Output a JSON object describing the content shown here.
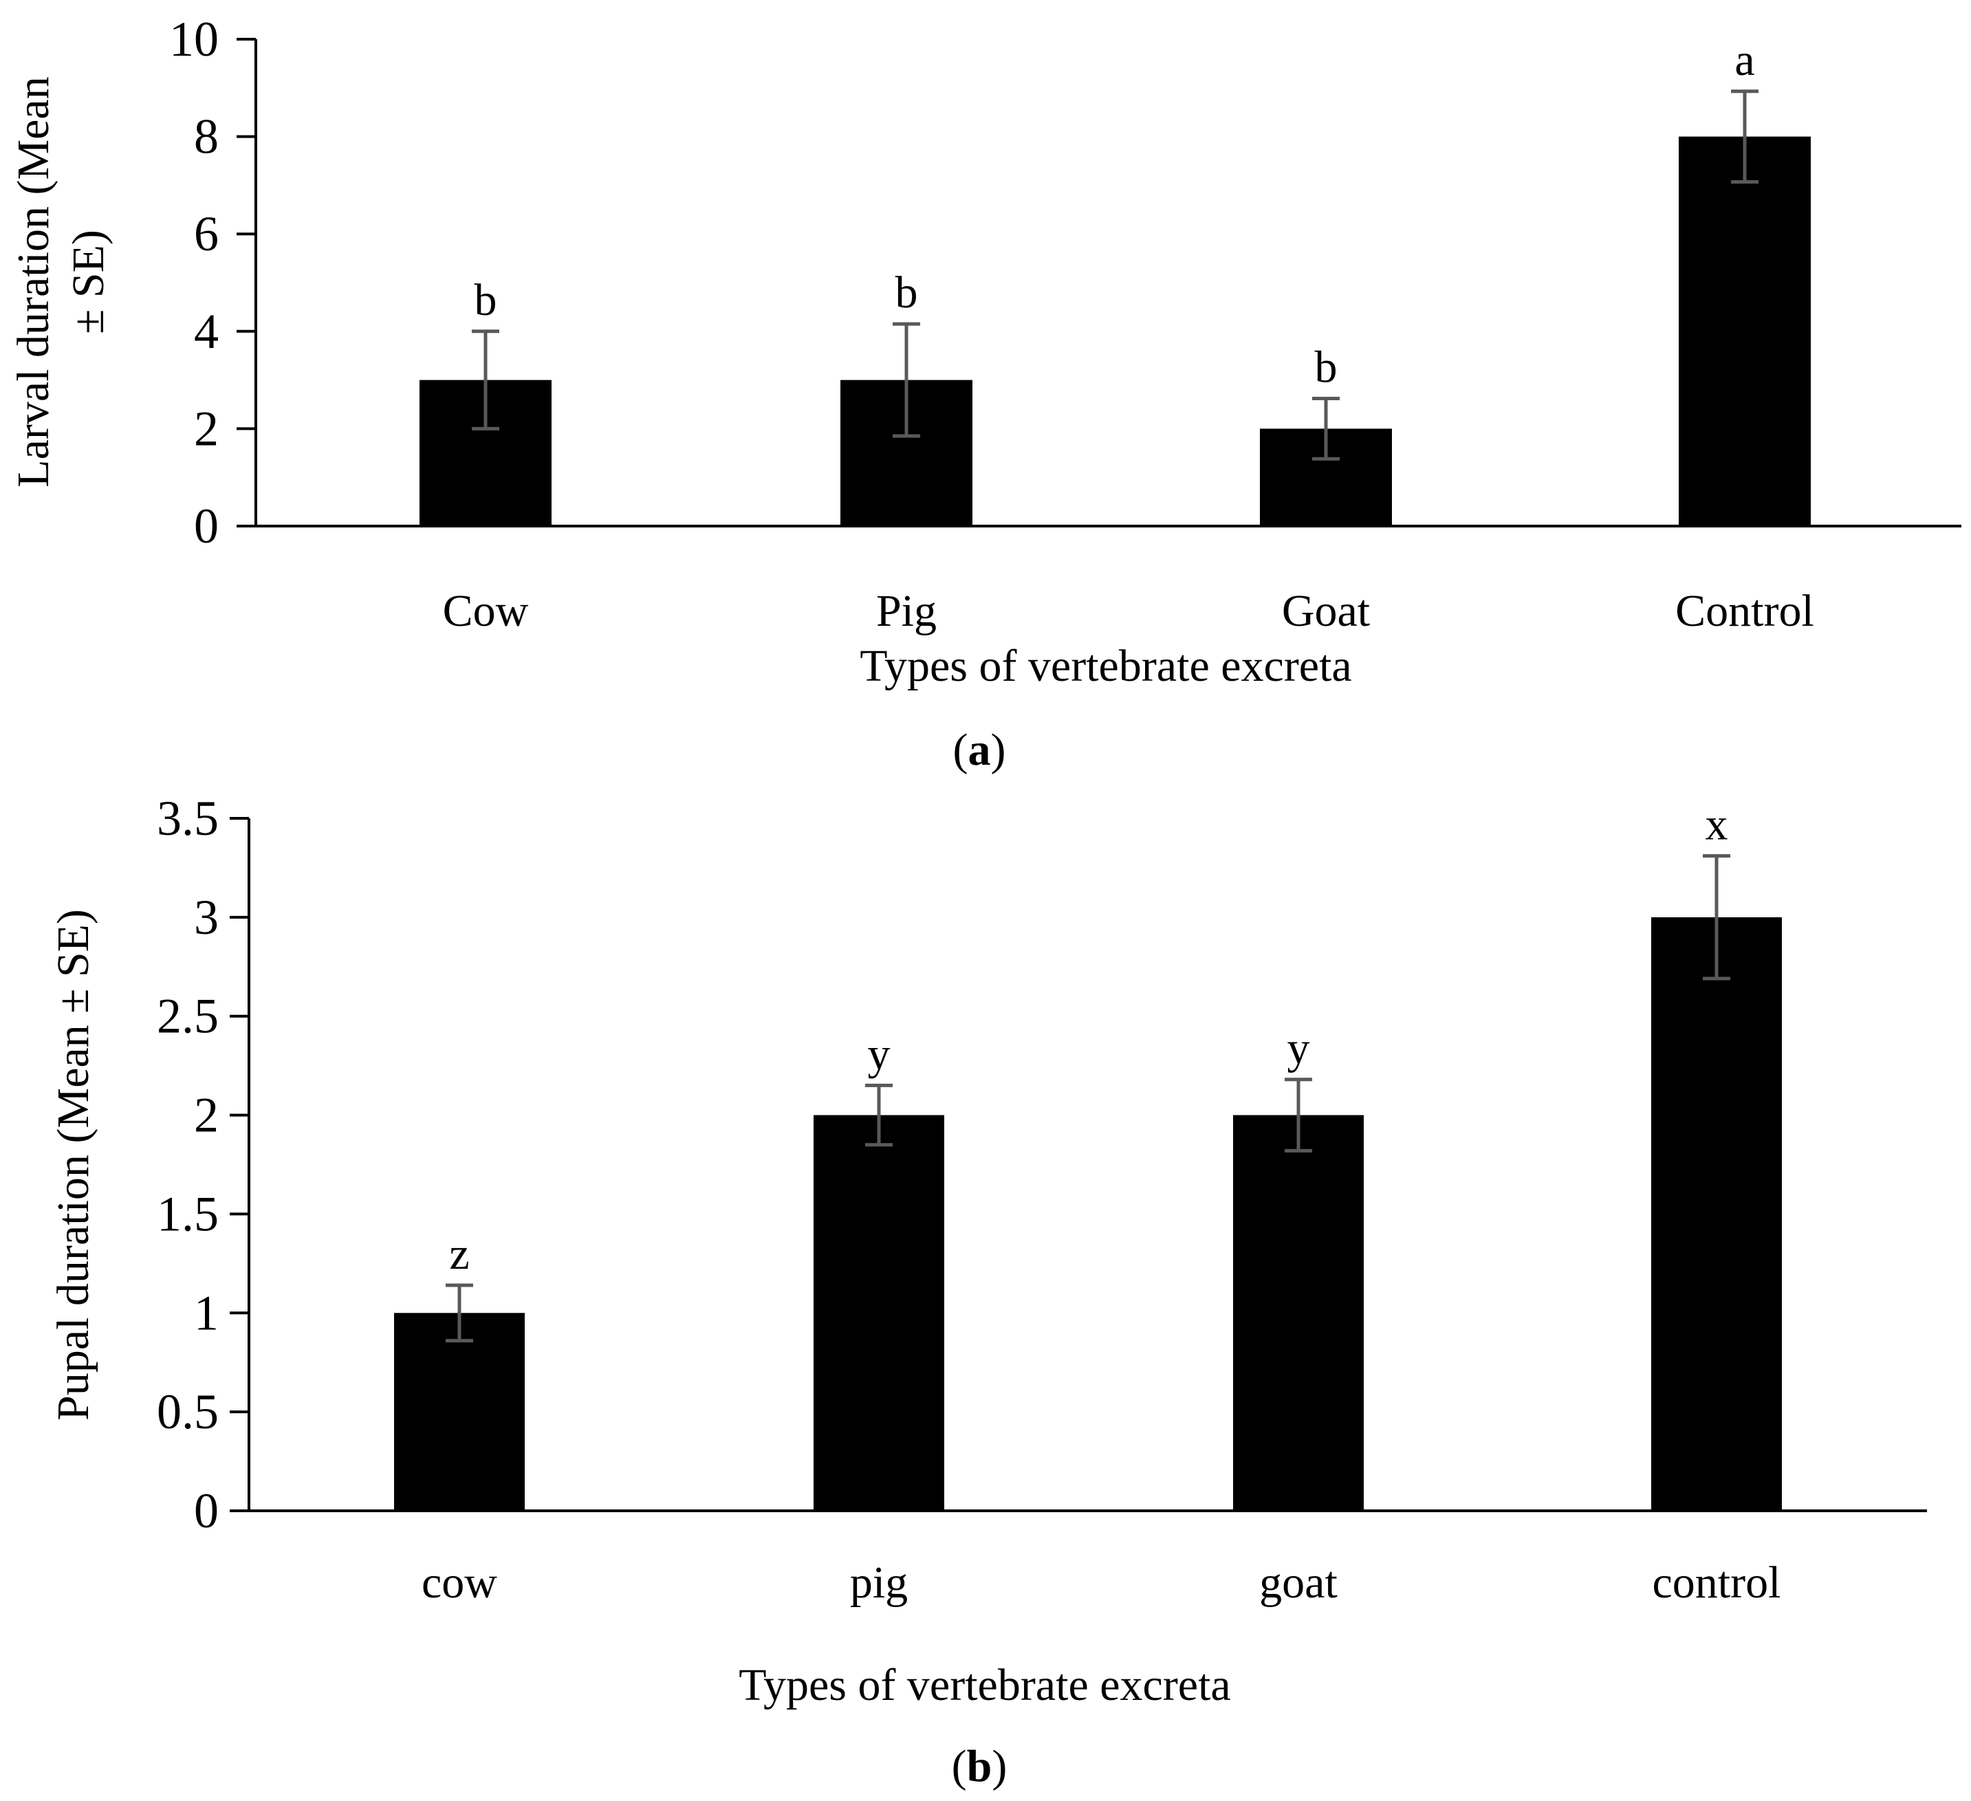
{
  "chart_data": [
    {
      "type": "bar",
      "panel_label": "a",
      "title": "",
      "xlabel": "Types of vertebrate excreta",
      "ylabel_lines": [
        "Larval duration (Mean",
        "± SE)"
      ],
      "categories": [
        "Cow",
        "Pig",
        "Goat",
        "Control"
      ],
      "values": [
        3,
        3,
        2,
        8
      ],
      "errors": [
        1.0,
        1.15,
        0.62,
        0.93
      ],
      "significance": [
        "b",
        "b",
        "b",
        "a"
      ],
      "ylim": [
        0,
        10
      ],
      "yticks": [
        0,
        2,
        4,
        6,
        8,
        10
      ],
      "ytick_labels": [
        "0",
        "2",
        "4",
        "6",
        "8",
        "10"
      ],
      "grid": false,
      "bar_color": "#000000",
      "error_bar_color": "#595959"
    },
    {
      "type": "bar",
      "panel_label": "b",
      "title": "",
      "xlabel": "Types of vertebrate excreta",
      "ylabel_lines": [
        "Pupal duration (Mean ± SE)"
      ],
      "categories": [
        "cow",
        "pig",
        "goat",
        "control"
      ],
      "values": [
        1,
        2,
        2,
        3
      ],
      "errors": [
        0.14,
        0.15,
        0.18,
        0.31
      ],
      "significance": [
        "z",
        "y",
        "y",
        "x"
      ],
      "ylim": [
        0,
        3.5
      ],
      "yticks": [
        0,
        0.5,
        1,
        1.5,
        2,
        2.5,
        3,
        3.5
      ],
      "ytick_labels": [
        "0",
        "0.5",
        "1",
        "1.5",
        "2",
        "2.5",
        "3",
        "3.5"
      ],
      "grid": false,
      "bar_color": "#000000",
      "error_bar_color": "#595959"
    }
  ]
}
